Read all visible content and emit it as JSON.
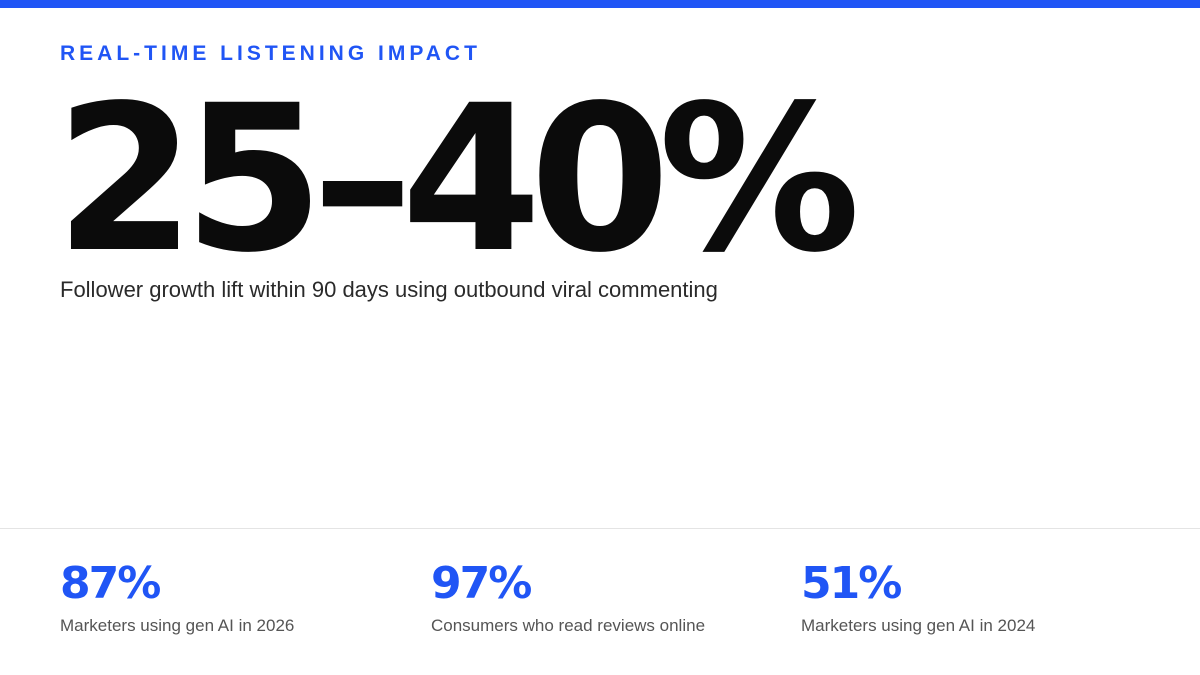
{
  "eyebrow": "REAL-TIME LISTENING IMPACT",
  "hero": {
    "value": "25–40%",
    "caption": "Follower growth lift within 90 days using outbound viral commenting"
  },
  "stats": [
    {
      "value": "87%",
      "label": "Marketers using gen AI in 2026"
    },
    {
      "value": "97%",
      "label": "Consumers who read reviews online"
    },
    {
      "value": "51%",
      "label": "Marketers using gen AI in 2024"
    }
  ],
  "colors": {
    "accent": "#2055f5",
    "text": "#0b0b0b",
    "muted": "#555555",
    "divider": "#e4e4e4"
  }
}
